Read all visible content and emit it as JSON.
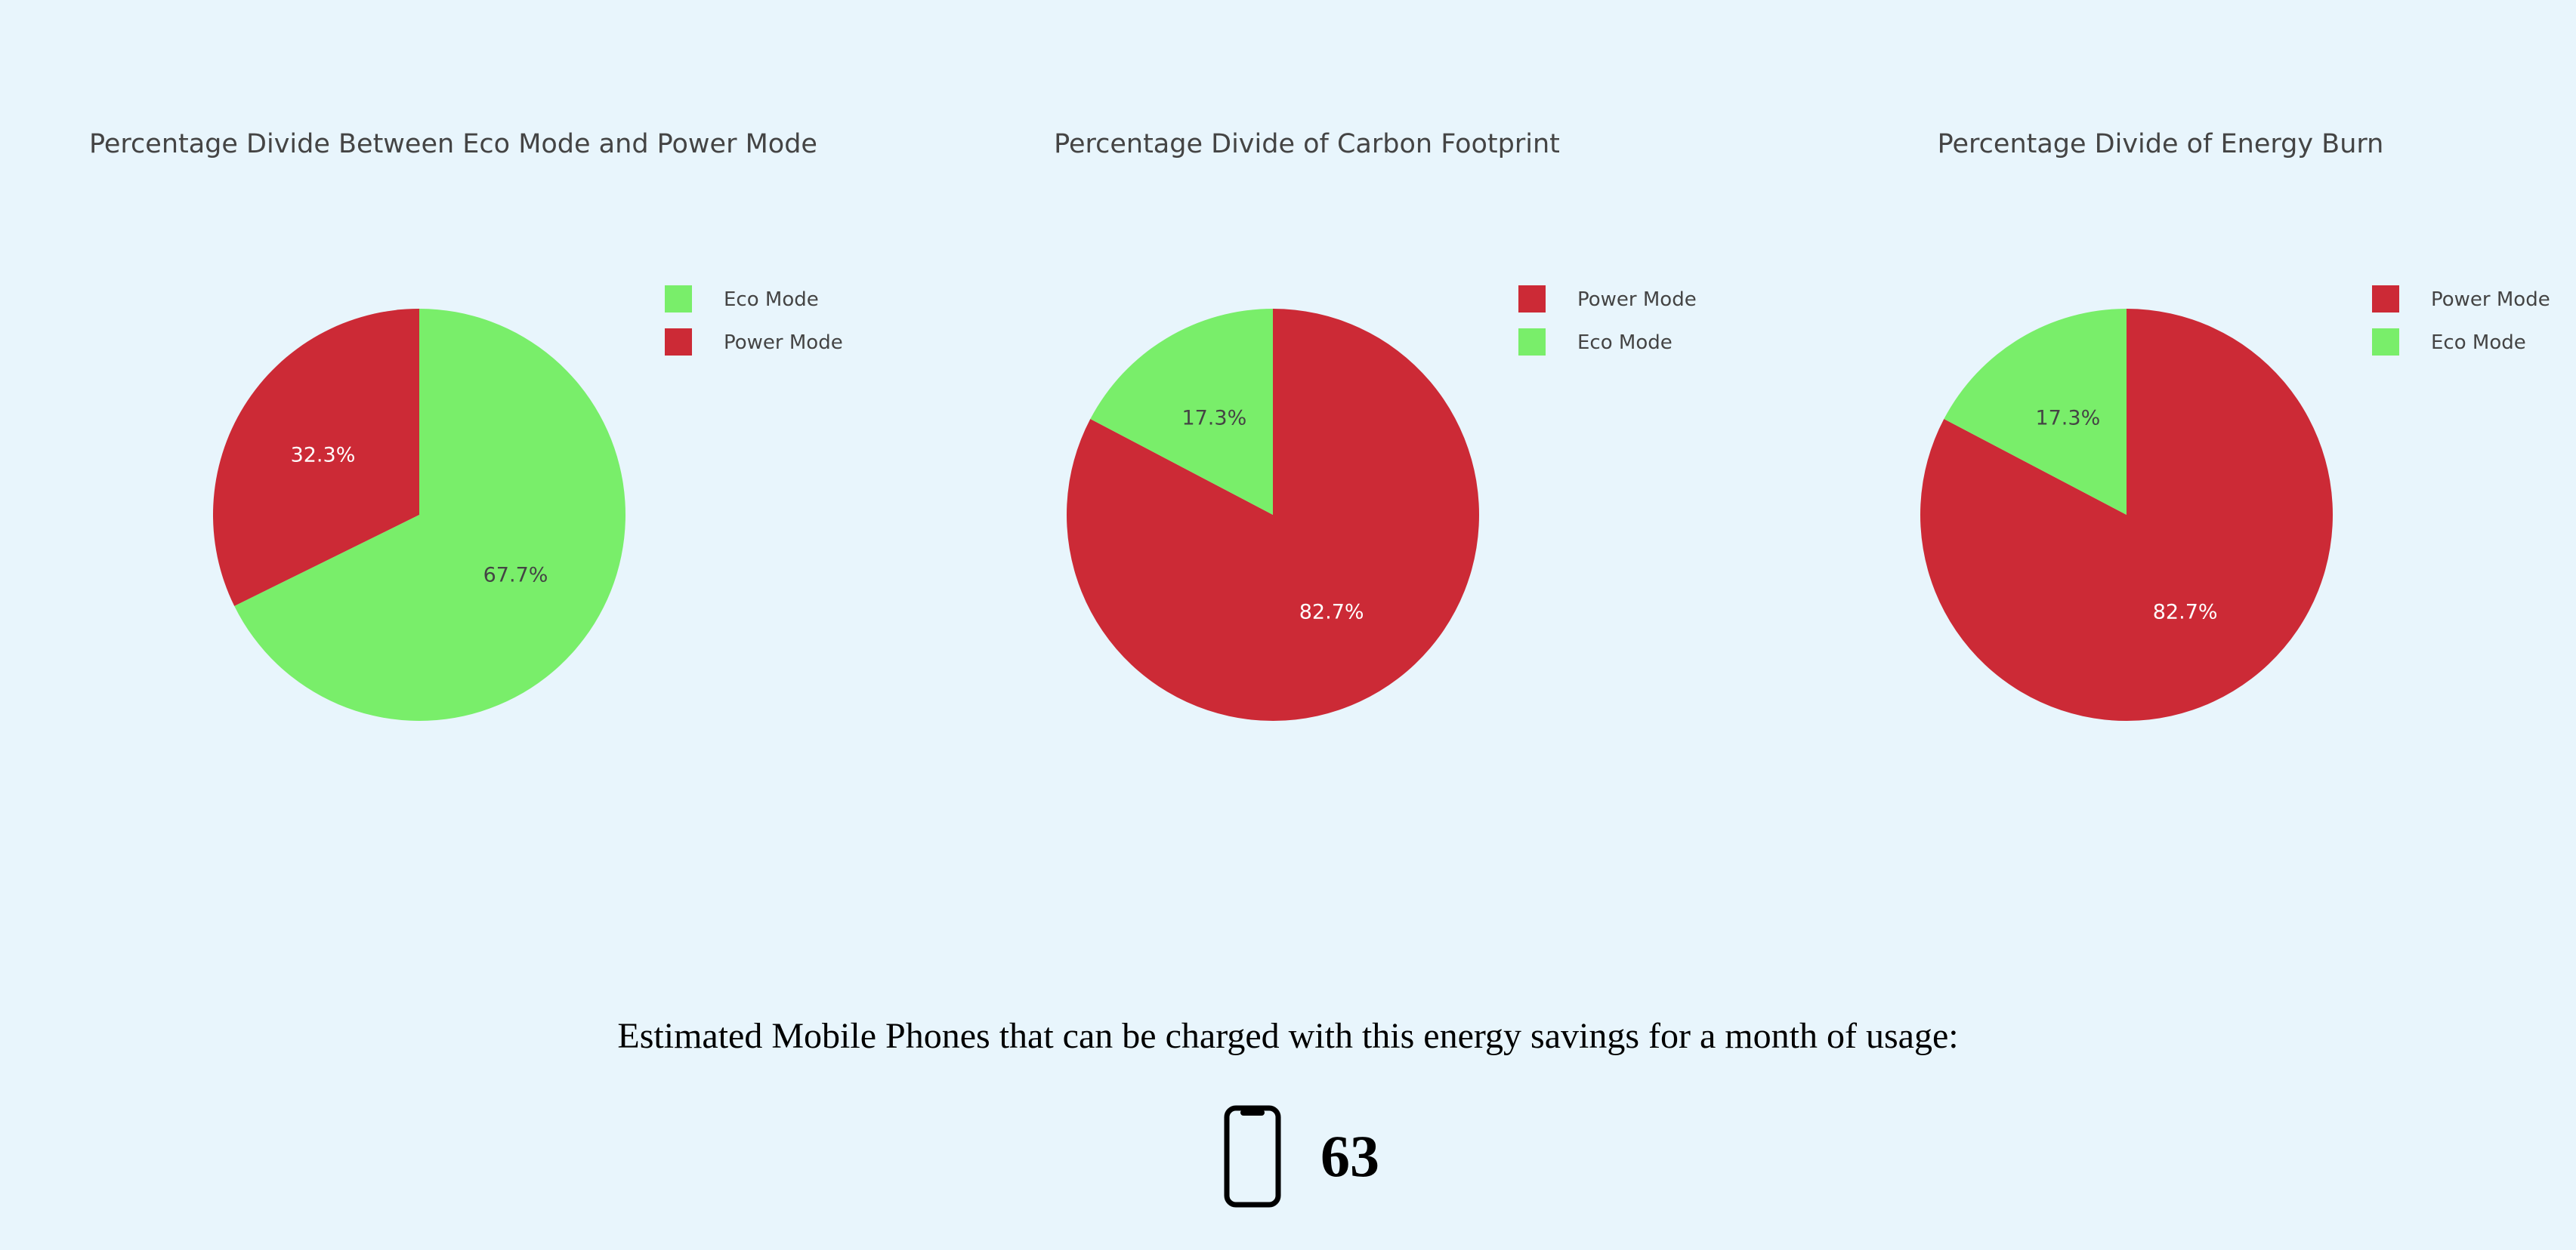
{
  "chart_data": [
    {
      "type": "pie",
      "title": "Percentage Divide Between Eco Mode and Power Mode",
      "labels": [
        "Eco Mode",
        "Power Mode"
      ],
      "values": [
        67.7,
        32.3
      ],
      "display_labels": [
        "67.7%",
        "32.3%"
      ],
      "colors": [
        "#79ee6a",
        "#cc2a36"
      ],
      "legend": "right"
    },
    {
      "type": "pie",
      "title": "Percentage Divide of Carbon Footprint",
      "labels": [
        "Power Mode",
        "Eco Mode"
      ],
      "values": [
        82.7,
        17.3
      ],
      "display_labels": [
        "82.7%",
        "17.3%"
      ],
      "colors": [
        "#cc2a36",
        "#79ee6a"
      ],
      "legend": "right"
    },
    {
      "type": "pie",
      "title": "Percentage Divide of Energy Burn",
      "labels": [
        "Power Mode",
        "Eco Mode"
      ],
      "values": [
        82.7,
        17.3
      ],
      "display_labels": [
        "82.7%",
        "17.3%"
      ],
      "colors": [
        "#cc2a36",
        "#79ee6a"
      ],
      "legend": "right"
    }
  ],
  "summary": {
    "caption": "Estimated Mobile Phones that can be charged with this energy savings for a month of usage:",
    "icon": "mobile-phone-icon",
    "count": "63"
  }
}
